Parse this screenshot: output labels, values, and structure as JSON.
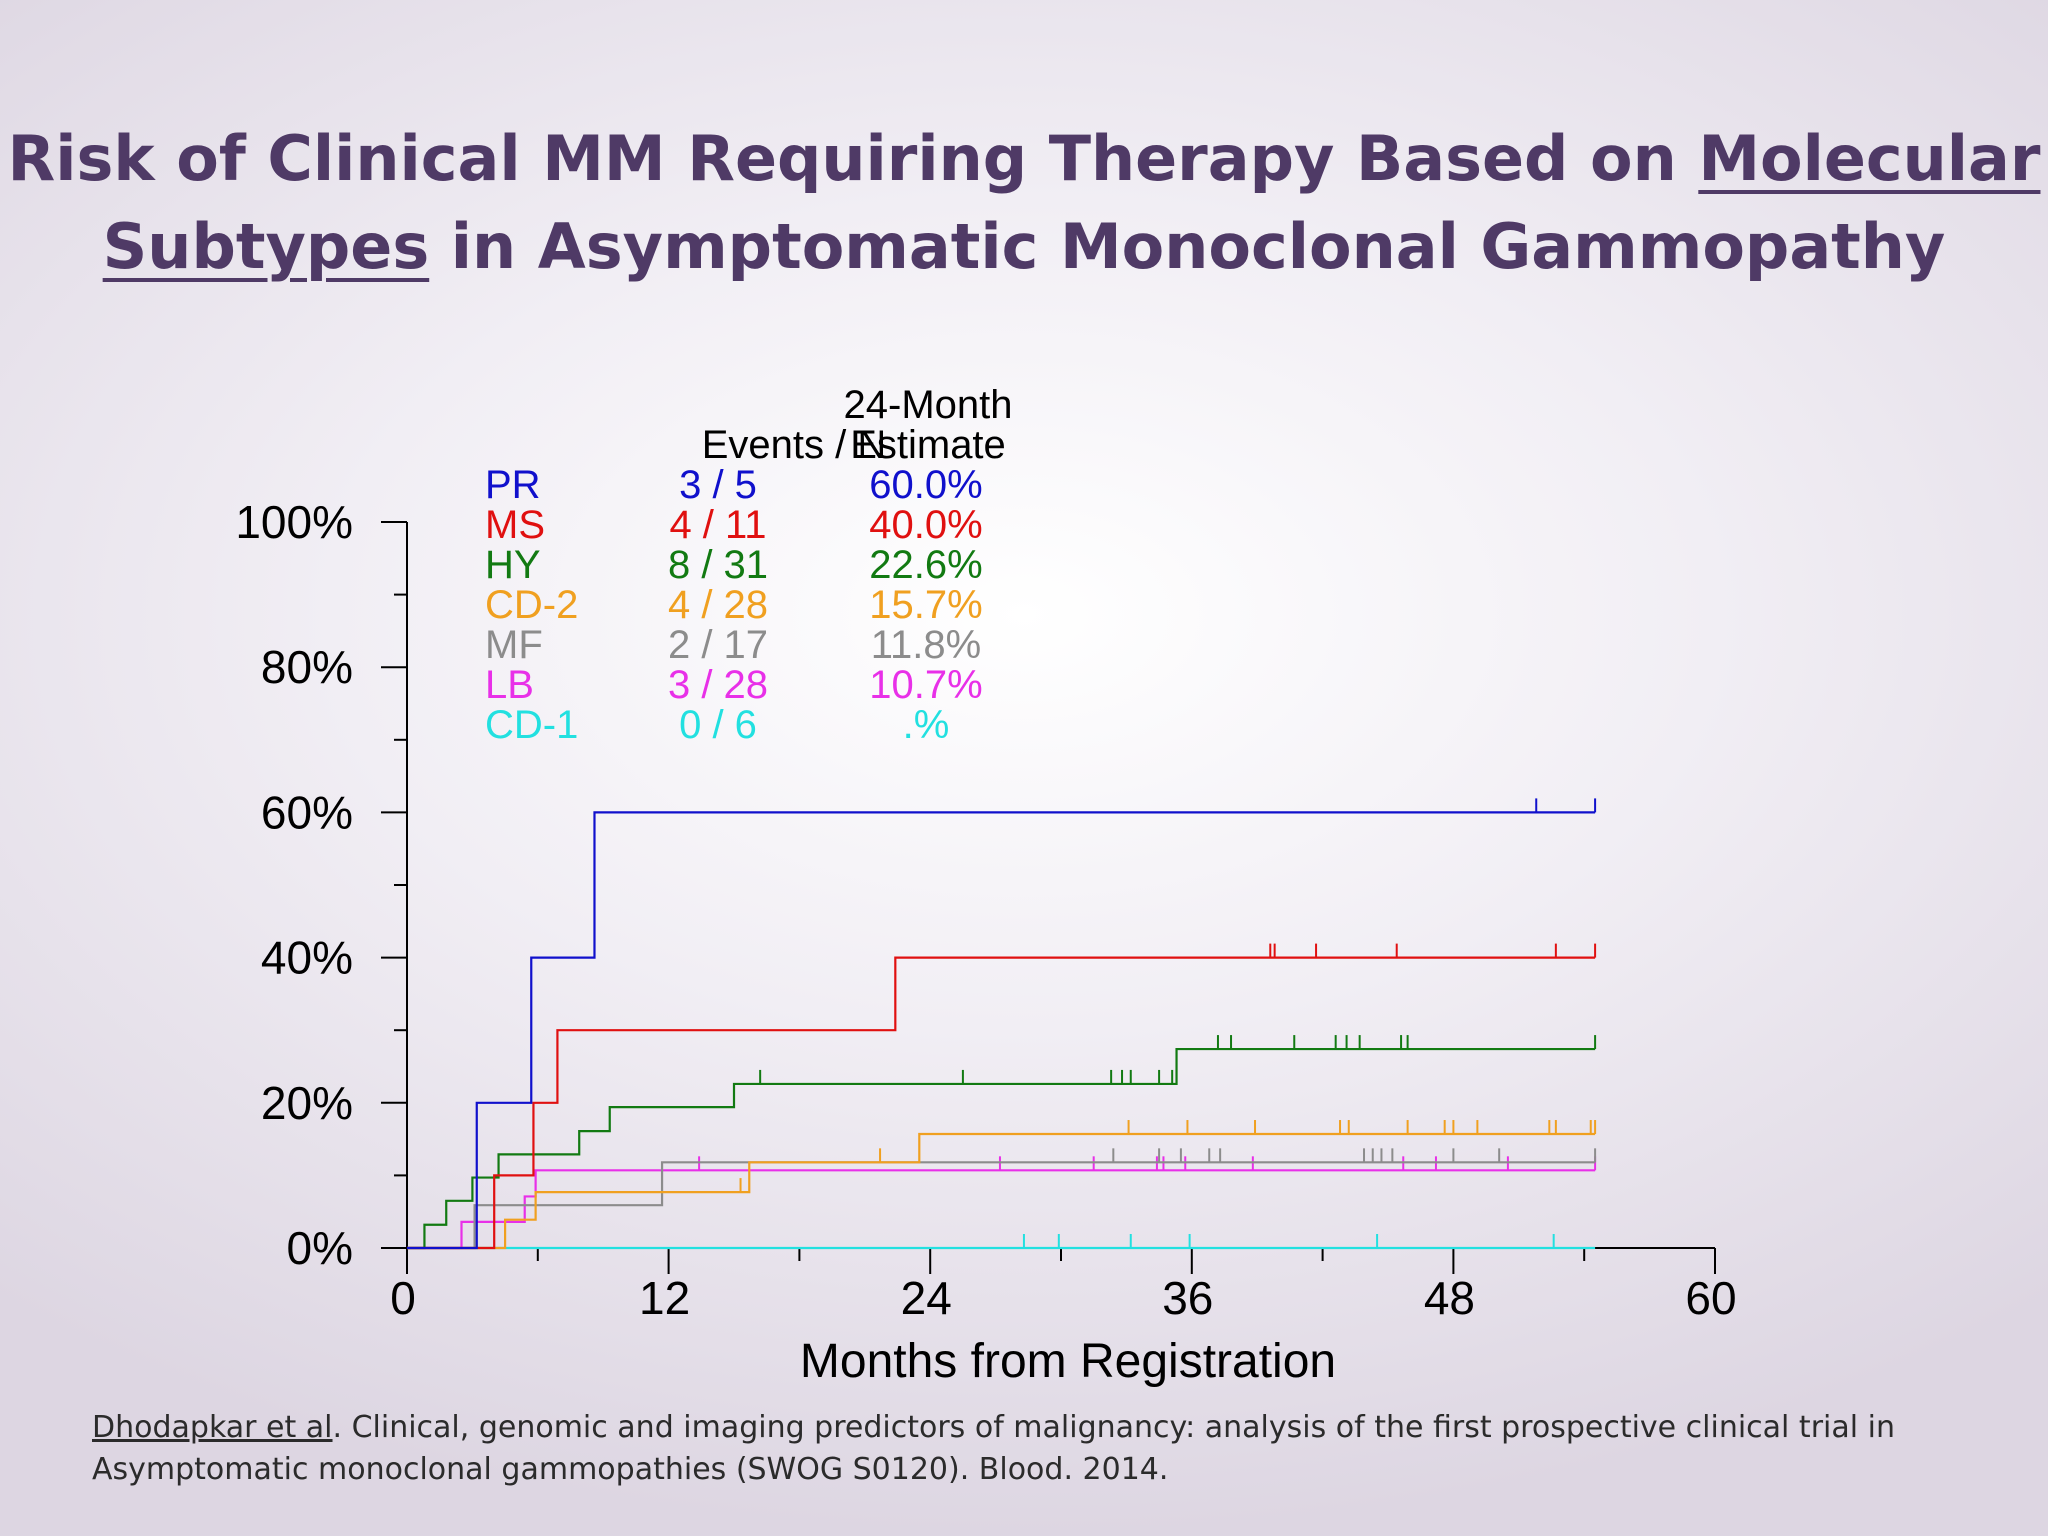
{
  "slide": {
    "title_part1": "Risk of Clinical MM Requiring Therapy Based on ",
    "title_underlined1": "Molecular",
    "title_underlined2": "Subtypes",
    "title_part2": " in Asymptomatic Monoclonal Gammopathy",
    "citation_author": "Dhodapkar et al",
    "citation_text": ". Clinical, genomic and imaging predictors of malignancy: analysis of the first prospective clinical trial in Asymptomatic monoclonal gammopathies (SWOG S0120). Blood. 2014."
  },
  "chart_data": {
    "type": "line",
    "xlabel": "Months from Registration",
    "ylabel": "",
    "xlim": [
      0,
      60
    ],
    "ylim": [
      0,
      100
    ],
    "xticks": [
      0,
      12,
      24,
      36,
      48,
      60
    ],
    "yticks": [
      0,
      20,
      40,
      60,
      80,
      100
    ],
    "ytick_labels": [
      "0%",
      "20%",
      "40%",
      "60%",
      "80%",
      "100%"
    ],
    "grid": false,
    "legend": {
      "placement": "top-left",
      "header_events": "Events / N",
      "header_estimate_line1": "24-Month",
      "header_estimate_line2": "Estimate"
    },
    "series": [
      {
        "name": "PR",
        "events_n": "3 / 5",
        "estimate": "60.0%",
        "color": "#1010cc",
        "steps": [
          [
            0,
            0
          ],
          [
            3.2,
            20
          ],
          [
            5.7,
            40
          ],
          [
            8.6,
            60
          ],
          [
            54.5,
            60
          ]
        ],
        "censors": [
          51.8,
          54.5
        ]
      },
      {
        "name": "MS",
        "events_n": "4 / 11",
        "estimate": "40.0%",
        "color": "#e01010",
        "steps": [
          [
            0,
            0
          ],
          [
            4,
            10
          ],
          [
            5.8,
            20
          ],
          [
            6.9,
            30
          ],
          [
            22.4,
            40
          ],
          [
            54.5,
            40
          ]
        ],
        "censors": [
          39.6,
          39.8,
          41.7,
          45.4,
          52.7,
          54.5
        ]
      },
      {
        "name": "HY",
        "events_n": "8 / 31",
        "estimate": "22.6%",
        "color": "#127a12",
        "steps": [
          [
            0,
            0
          ],
          [
            0.8,
            3.2
          ],
          [
            1.8,
            6.5
          ],
          [
            3,
            9.7
          ],
          [
            4.2,
            12.9
          ],
          [
            7.9,
            16.1
          ],
          [
            9.3,
            19.4
          ],
          [
            15,
            22.6
          ],
          [
            35.3,
            27.4
          ],
          [
            54.5,
            27.4
          ]
        ],
        "censors": [
          16.2,
          25.5,
          32.3,
          32.8,
          33.2,
          34.5,
          35.1,
          37.2,
          37.8,
          40.7,
          42.6,
          43.1,
          43.7,
          45.6,
          45.9,
          54.5
        ]
      },
      {
        "name": "CD-2",
        "events_n": "4 / 28",
        "estimate": "15.7%",
        "color": "#f0a020",
        "steps": [
          [
            0,
            0
          ],
          [
            4.5,
            3.9
          ],
          [
            5.9,
            7.7
          ],
          [
            15.7,
            11.8
          ],
          [
            23.5,
            15.7
          ],
          [
            54.5,
            15.7
          ]
        ],
        "censors": [
          15.3,
          21.7,
          33.1,
          35.8,
          38.9,
          42.8,
          43.2,
          45.9,
          47.6,
          48,
          49.1,
          52.4,
          52.7,
          54.3,
          54.5
        ]
      },
      {
        "name": "MF",
        "events_n": "2 / 17",
        "estimate": "11.8%",
        "color": "#8c8c8c",
        "steps": [
          [
            0,
            0
          ],
          [
            3.1,
            5.9
          ],
          [
            11.7,
            11.8
          ],
          [
            54.5,
            11.8
          ]
        ],
        "censors": [
          32.4,
          34.5,
          35.5,
          36.8,
          37.3,
          43.9,
          44.3,
          44.7,
          45.2,
          48,
          50.1,
          54.5
        ]
      },
      {
        "name": "LB",
        "events_n": "3 / 28",
        "estimate": "10.7%",
        "color": "#e830e8",
        "steps": [
          [
            0,
            0
          ],
          [
            2.5,
            3.6
          ],
          [
            5.4,
            7.1
          ],
          [
            5.9,
            10.7
          ],
          [
            54.5,
            10.7
          ]
        ],
        "censors": [
          13.4,
          27.2,
          31.5,
          34.4,
          34.7,
          35.7,
          38.8,
          45.7,
          47.2,
          50.5,
          54.5
        ]
      },
      {
        "name": "CD-1",
        "events_n": "0 / 6",
        "estimate": ".%",
        "color": "#22e0e0",
        "steps": [
          [
            0,
            0
          ],
          [
            54.5,
            0
          ]
        ],
        "censors": [
          28.3,
          29.9,
          33.2,
          35.9,
          44.5,
          52.6
        ]
      }
    ]
  }
}
